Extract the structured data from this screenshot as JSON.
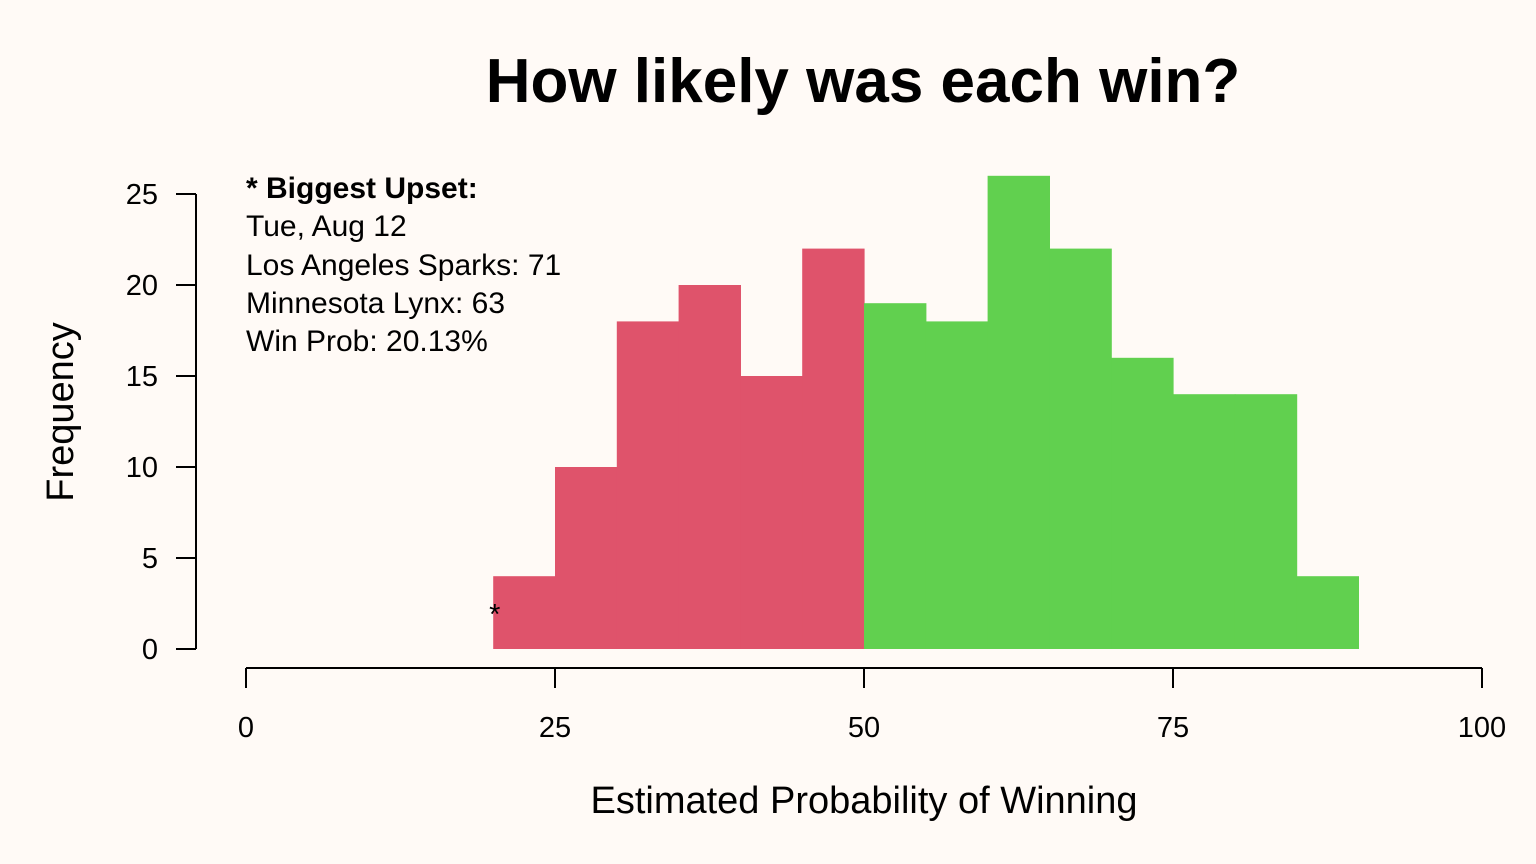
{
  "chart_data": {
    "type": "bar",
    "title": "How likely was each win?",
    "xlabel": "Estimated Probability of Winning",
    "ylabel": "Frequency",
    "xlim": [
      0,
      100
    ],
    "ylim": [
      0,
      25
    ],
    "xticks": [
      0,
      25,
      50,
      75,
      100
    ],
    "yticks": [
      0,
      5,
      10,
      15,
      20,
      25
    ],
    "grid": false,
    "colors": {
      "below_50": "#df536b",
      "above_50": "#61d04f",
      "background": "#fffaf6"
    },
    "bins": [
      {
        "start": 20,
        "end": 25,
        "value": 4
      },
      {
        "start": 25,
        "end": 30,
        "value": 10
      },
      {
        "start": 30,
        "end": 35,
        "value": 18
      },
      {
        "start": 35,
        "end": 40,
        "value": 20
      },
      {
        "start": 40,
        "end": 45,
        "value": 15
      },
      {
        "start": 45,
        "end": 50,
        "value": 22
      },
      {
        "start": 50,
        "end": 55,
        "value": 19
      },
      {
        "start": 55,
        "end": 60,
        "value": 18
      },
      {
        "start": 60,
        "end": 65,
        "value": 26
      },
      {
        "start": 65,
        "end": 70,
        "value": 22
      },
      {
        "start": 70,
        "end": 75,
        "value": 16
      },
      {
        "start": 75,
        "end": 80,
        "value": 14
      },
      {
        "start": 80,
        "end": 85,
        "value": 14
      },
      {
        "start": 85,
        "end": 90,
        "value": 4
      }
    ],
    "upset_marker": {
      "symbol": "*",
      "x": 20.13
    },
    "annotation": {
      "heading": "* Biggest Upset:",
      "lines": [
        "Tue, Aug 12",
        "Los Angeles Sparks: 71",
        "Minnesota Lynx: 63",
        "Win Prob: 20.13%"
      ]
    }
  }
}
